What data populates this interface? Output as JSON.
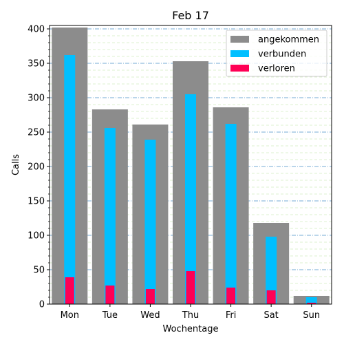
{
  "chart_data": {
    "type": "bar",
    "title": "Feb 17",
    "xlabel": "Wochentage",
    "ylabel": "Calls",
    "categories": [
      "Mon",
      "Tue",
      "Wed",
      "Thu",
      "Fri",
      "Sat",
      "Sun"
    ],
    "ylim": [
      0,
      405
    ],
    "yticks": [
      0,
      50,
      100,
      150,
      200,
      250,
      300,
      350,
      400
    ],
    "grid": true,
    "legend_position": "top-right",
    "series": [
      {
        "name": "angekommen",
        "color": "#8c8c8c",
        "values": [
          402,
          283,
          261,
          353,
          286,
          118,
          12
        ]
      },
      {
        "name": "verbunden",
        "color": "#00bfff",
        "values": [
          362,
          256,
          239,
          305,
          262,
          98,
          10
        ]
      },
      {
        "name": "verloren",
        "color": "#ff0055",
        "values": [
          39,
          27,
          22,
          48,
          24,
          20,
          2
        ]
      }
    ]
  }
}
